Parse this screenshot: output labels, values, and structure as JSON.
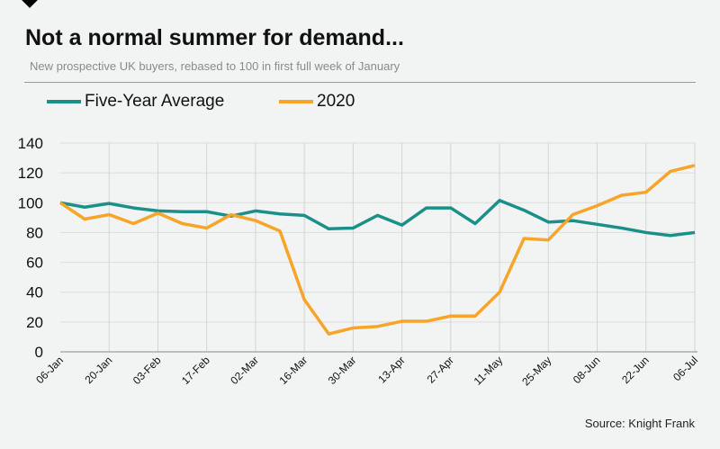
{
  "chart_data": {
    "type": "line",
    "title": "Not a normal summer for demand...",
    "subtitle": "New prospective UK buyers, rebased to 100 in first full week of January",
    "source": "Source: Knight Frank",
    "x": [
      "06-Jan",
      "13-Jan",
      "20-Jan",
      "27-Jan",
      "03-Feb",
      "10-Feb",
      "17-Feb",
      "24-Feb",
      "02-Mar",
      "09-Mar",
      "16-Mar",
      "23-Mar",
      "30-Mar",
      "06-Apr",
      "13-Apr",
      "20-Apr",
      "27-Apr",
      "04-May",
      "11-May",
      "18-May",
      "25-May",
      "01-Jun",
      "08-Jun",
      "15-Jun",
      "22-Jun",
      "29-Jun",
      "06-Jul"
    ],
    "tick_labels": [
      "06-Jan",
      "20-Jan",
      "03-Feb",
      "17-Feb",
      "02-Mar",
      "16-Mar",
      "30-Mar",
      "13-Apr",
      "27-Apr",
      "11-May",
      "25-May",
      "08-Jun",
      "22-Jun",
      "06-Jul"
    ],
    "yticks": [
      0,
      20,
      40,
      60,
      80,
      100,
      120,
      140
    ],
    "ylim": [
      0,
      140
    ],
    "grid": true,
    "legend": "top-left",
    "series": [
      {
        "name": "Five-Year Average",
        "color": "#1a9089",
        "values": [
          100,
          97,
          99.5,
          96.5,
          94.5,
          94,
          94,
          91,
          94.5,
          92.5,
          91.5,
          82.5,
          83,
          91.5,
          85,
          96.5,
          96.5,
          86,
          101.5,
          95,
          87,
          88,
          85.5,
          83,
          80,
          78,
          80
        ]
      },
      {
        "name": "2020",
        "color": "#f7a428",
        "values": [
          100,
          89,
          92,
          86,
          93,
          86,
          83,
          92,
          88,
          81,
          35,
          12,
          16,
          17,
          20.5,
          20.5,
          24,
          24,
          40,
          76,
          75,
          92,
          98,
          105,
          107,
          121,
          125
        ]
      }
    ]
  }
}
